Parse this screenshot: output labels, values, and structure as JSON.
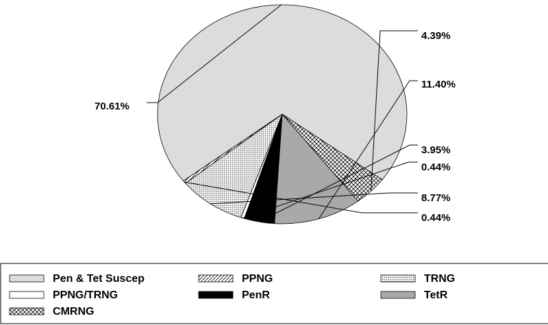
{
  "chart_data": {
    "type": "pie",
    "title": "",
    "slices": [
      {
        "name": "Pen & Tet Suscep",
        "value": 70.61,
        "label": "70.61%",
        "pattern": "solid-light-gray"
      },
      {
        "name": "CMRNG",
        "value": 4.39,
        "label": "4.39%",
        "pattern": "crosshatch"
      },
      {
        "name": "TetR",
        "value": 11.4,
        "label": "11.40%",
        "pattern": "solid-gray"
      },
      {
        "name": "PenR",
        "value": 3.95,
        "label": "3.95%",
        "pattern": "solid-black"
      },
      {
        "name": "PPNG/TRNG",
        "value": 0.44,
        "label": "0.44%",
        "pattern": "solid-white"
      },
      {
        "name": "TRNG",
        "value": 8.77,
        "label": "8.77%",
        "pattern": "grid"
      },
      {
        "name": "PPNG",
        "value": 0.44,
        "label": "0.44%",
        "pattern": "diagonal"
      }
    ],
    "legend": {
      "placement": "bottom",
      "entries": [
        "Pen & Tet Suscep",
        "PPNG",
        "TRNG",
        "PPNG/TRNG",
        "PenR",
        "TetR",
        "CMRNG"
      ]
    },
    "colors": {
      "solid-light-gray": "#dcdcdc",
      "solid-gray": "#a9a9a9",
      "solid-black": "#000000",
      "solid-white": "#ffffff"
    }
  }
}
